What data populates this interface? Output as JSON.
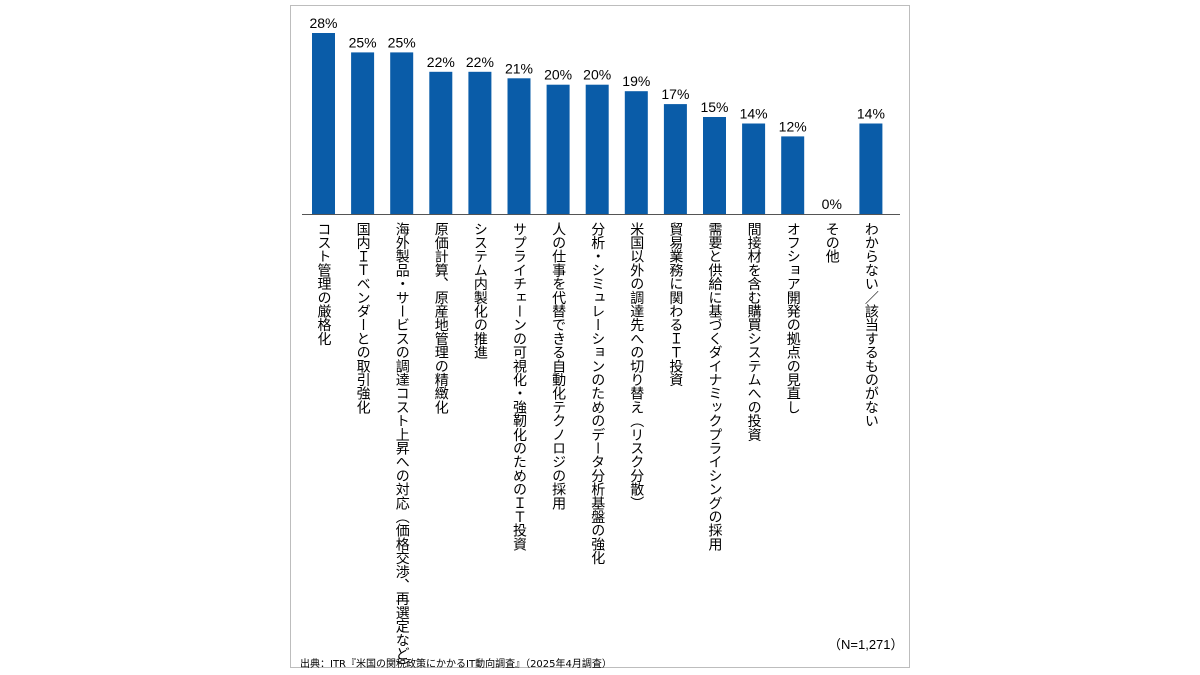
{
  "chart_data": {
    "type": "bar",
    "categories": [
      "コスト管理の厳格化",
      "国内ＩＴベンダーとの取引強化",
      "海外製品・サービスの調達コスト上昇への対応（価格交渉、再選定など）",
      "原価計算、原産地管理の精緻化",
      "システム内製化の推進",
      "サプライチェーンの可視化・強靭化のためのＩＴ投資",
      "人の仕事を代替できる自動化テクノロジの採用",
      "分析・シミュレーションのためのデータ分析基盤の強化",
      "米国以外の調達先への切り替え（リスク分散）",
      "貿易業務に関わるＩＴ投資",
      "需要と供給に基づくダイナミックプライシングの採用",
      "間接材を含む購買システムへの投資",
      "オフショア開発の拠点の見直し",
      "その他",
      "わからない／該当するものがない"
    ],
    "values": [
      28,
      25,
      25,
      22,
      22,
      21,
      20,
      20,
      19,
      17,
      15,
      14,
      12,
      0,
      14
    ],
    "value_labels": [
      "28%",
      "25%",
      "25%",
      "22%",
      "22%",
      "21%",
      "20%",
      "20%",
      "19%",
      "17%",
      "15%",
      "14%",
      "12%",
      "0%",
      "14%"
    ],
    "ylim": [
      0,
      30
    ],
    "bar_color": "#0a5ca8",
    "grid": false,
    "legend": "none",
    "note": "（N=1,271）",
    "source": "出典：ITR『米国の関税政策にかかるIT動向調査』（2025年4月調査）"
  }
}
